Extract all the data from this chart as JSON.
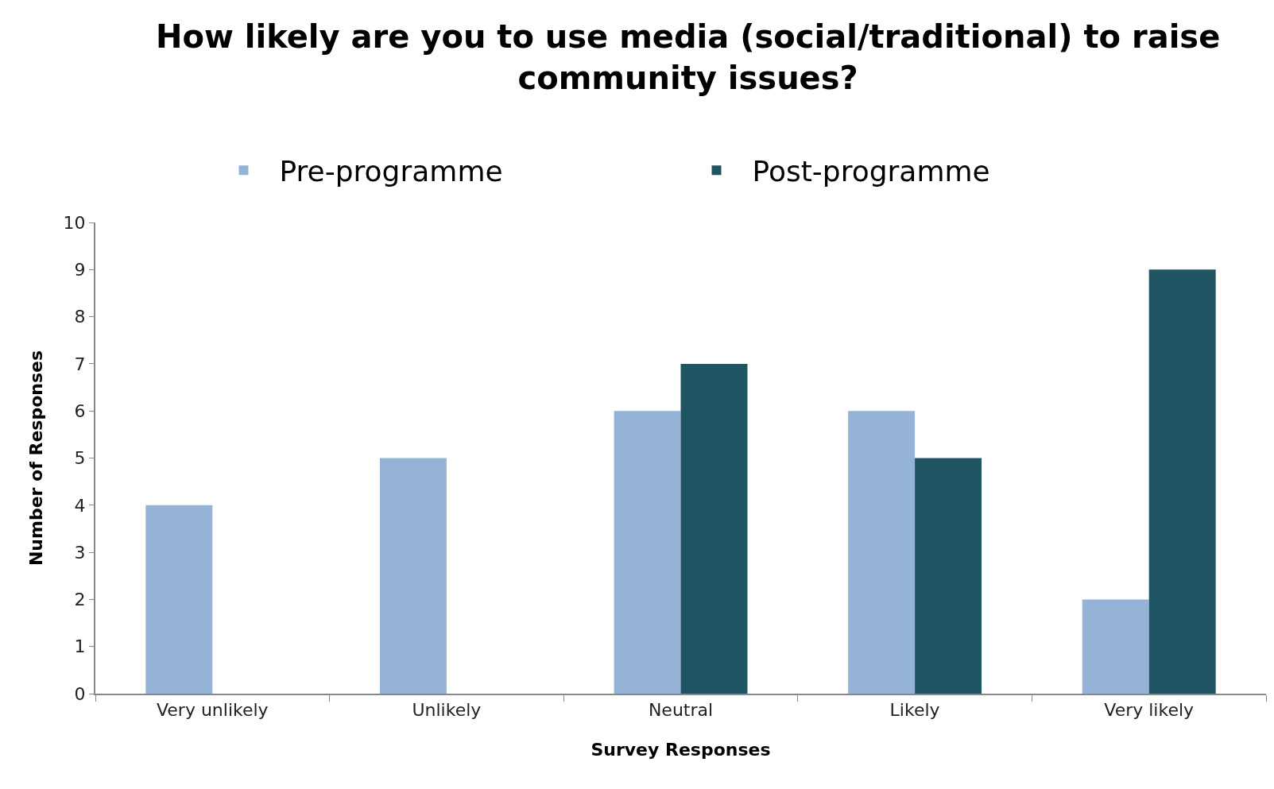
{
  "chart_data": {
    "type": "bar",
    "title": "How likely are you to use media (social/traditional) to raise community issues?",
    "xlabel": "Survey Responses",
    "ylabel": "Number of Responses",
    "categories": [
      "Very unlikely",
      "Unlikely",
      "Neutral",
      "Likely",
      "Very likely"
    ],
    "series": [
      {
        "name": "Pre-programme",
        "color": "#95b3d7",
        "values": [
          4,
          5,
          6,
          6,
          2
        ]
      },
      {
        "name": "Post-programme",
        "color": "#1f5562",
        "values": [
          0,
          0,
          7,
          5,
          9
        ]
      }
    ],
    "ylim": [
      0,
      10
    ],
    "yticks": [
      0,
      1,
      2,
      3,
      4,
      5,
      6,
      7,
      8,
      9,
      10
    ],
    "grid": false,
    "legend": "top"
  }
}
